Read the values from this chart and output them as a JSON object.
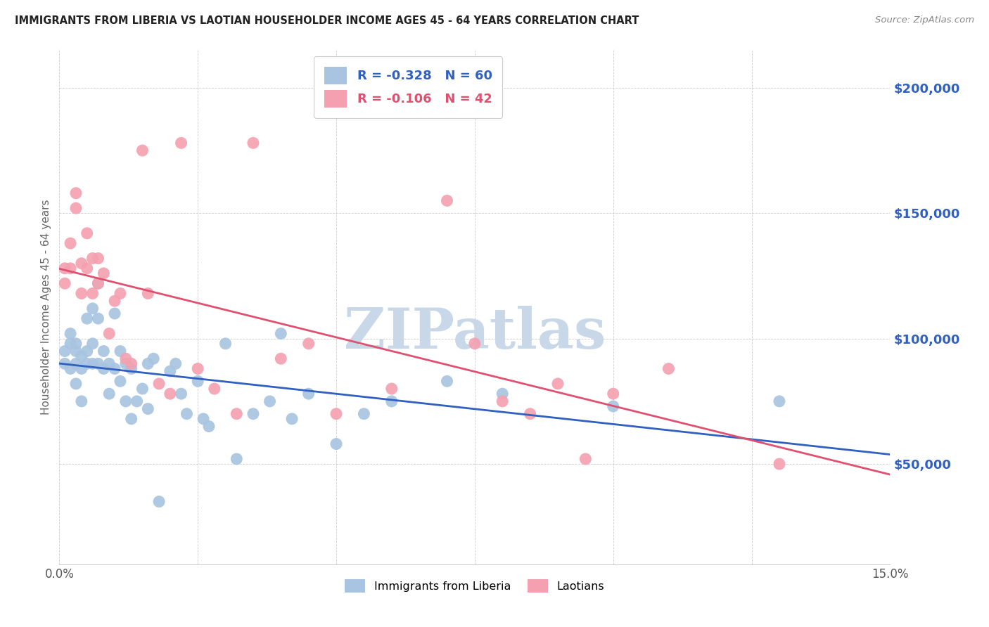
{
  "title": "IMMIGRANTS FROM LIBERIA VS LAOTIAN HOUSEHOLDER INCOME AGES 45 - 64 YEARS CORRELATION CHART",
  "source": "Source: ZipAtlas.com",
  "ylabel": "Householder Income Ages 45 - 64 years",
  "yticks": [
    50000,
    100000,
    150000,
    200000
  ],
  "ytick_labels": [
    "$50,000",
    "$100,000",
    "$150,000",
    "$200,000"
  ],
  "xmin": 0.0,
  "xmax": 0.15,
  "ymin": 10000,
  "ymax": 215000,
  "legend_r1": "-0.328",
  "legend_n1": "60",
  "legend_r2": "-0.106",
  "legend_n2": "42",
  "color_liberia": "#a8c4e0",
  "color_laotian": "#f4a0b0",
  "color_line_liberia": "#3060c0",
  "color_line_laotian": "#e05070",
  "watermark_text": "ZIPatlas",
  "watermark_color": "#c8d8e8",
  "liberia_x": [
    0.001,
    0.001,
    0.002,
    0.002,
    0.002,
    0.003,
    0.003,
    0.003,
    0.003,
    0.004,
    0.004,
    0.004,
    0.005,
    0.005,
    0.005,
    0.006,
    0.006,
    0.006,
    0.007,
    0.007,
    0.007,
    0.008,
    0.008,
    0.009,
    0.009,
    0.01,
    0.01,
    0.011,
    0.011,
    0.012,
    0.012,
    0.013,
    0.013,
    0.014,
    0.015,
    0.016,
    0.016,
    0.017,
    0.018,
    0.02,
    0.021,
    0.022,
    0.023,
    0.025,
    0.026,
    0.027,
    0.03,
    0.032,
    0.035,
    0.038,
    0.04,
    0.042,
    0.045,
    0.05,
    0.055,
    0.06,
    0.07,
    0.08,
    0.1,
    0.13
  ],
  "liberia_y": [
    95000,
    90000,
    98000,
    102000,
    88000,
    95000,
    90000,
    98000,
    82000,
    93000,
    88000,
    75000,
    108000,
    95000,
    90000,
    112000,
    98000,
    90000,
    122000,
    108000,
    90000,
    95000,
    88000,
    90000,
    78000,
    110000,
    88000,
    95000,
    83000,
    90000,
    75000,
    88000,
    68000,
    75000,
    80000,
    90000,
    72000,
    92000,
    35000,
    87000,
    90000,
    78000,
    70000,
    83000,
    68000,
    65000,
    98000,
    52000,
    70000,
    75000,
    102000,
    68000,
    78000,
    58000,
    70000,
    75000,
    83000,
    78000,
    73000,
    75000
  ],
  "laotian_x": [
    0.001,
    0.001,
    0.002,
    0.002,
    0.003,
    0.003,
    0.004,
    0.004,
    0.005,
    0.005,
    0.006,
    0.006,
    0.007,
    0.007,
    0.008,
    0.009,
    0.01,
    0.011,
    0.012,
    0.013,
    0.015,
    0.016,
    0.018,
    0.02,
    0.022,
    0.025,
    0.028,
    0.032,
    0.035,
    0.04,
    0.045,
    0.05,
    0.06,
    0.07,
    0.075,
    0.08,
    0.085,
    0.09,
    0.095,
    0.1,
    0.11,
    0.13
  ],
  "laotian_y": [
    128000,
    122000,
    138000,
    128000,
    158000,
    152000,
    130000,
    118000,
    142000,
    128000,
    118000,
    132000,
    122000,
    132000,
    126000,
    102000,
    115000,
    118000,
    92000,
    90000,
    175000,
    118000,
    82000,
    78000,
    178000,
    88000,
    80000,
    70000,
    178000,
    92000,
    98000,
    70000,
    80000,
    155000,
    98000,
    75000,
    70000,
    82000,
    52000,
    78000,
    88000,
    50000
  ]
}
